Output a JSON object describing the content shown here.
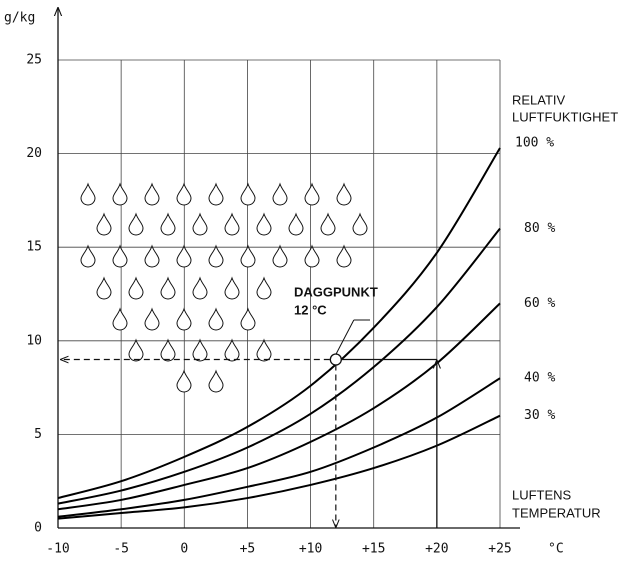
{
  "chart_data": {
    "type": "line",
    "y_label": "g/kg",
    "x_label": "°C",
    "legend_title": [
      "RELATIV",
      "LUFTFUKTIGHET"
    ],
    "x_title": [
      "LUFTENS",
      "TEMPERATUR"
    ],
    "x": [
      -10,
      -5,
      0,
      5,
      10,
      15,
      20,
      25
    ],
    "series": [
      {
        "name": "100 %",
        "color": "#000000",
        "values": [
          1.6,
          2.5,
          3.8,
          5.4,
          7.6,
          10.7,
          14.7,
          20.3
        ]
      },
      {
        "name": "80 %",
        "color": "#000000",
        "values": [
          1.3,
          2.0,
          3.0,
          4.3,
          6.1,
          8.6,
          11.8,
          16.0
        ]
      },
      {
        "name": "60 %",
        "color": "#000000",
        "values": [
          1.0,
          1.5,
          2.3,
          3.2,
          4.6,
          6.4,
          8.8,
          12.0
        ]
      },
      {
        "name": "40 %",
        "color": "#000000",
        "values": [
          0.6,
          1.0,
          1.5,
          2.2,
          3.0,
          4.3,
          5.9,
          8.0
        ]
      },
      {
        "name": "30 %",
        "color": "#000000",
        "values": [
          0.5,
          0.8,
          1.1,
          1.6,
          2.3,
          3.2,
          4.4,
          6.0
        ]
      }
    ],
    "dew_point": {
      "title": "DAGGPUNKT",
      "label": "12 °C",
      "x": 12,
      "y": 9,
      "air_x": 20
    },
    "xlim": [
      -10,
      25
    ],
    "ylim": [
      0,
      25
    ],
    "xticks": [
      -10,
      -5,
      0,
      {
        "value": 5,
        "label": "+5"
      },
      {
        "value": 10,
        "label": "+10"
      },
      {
        "value": 15,
        "label": "+15"
      },
      {
        "value": 20,
        "label": "+20"
      },
      {
        "value": 25,
        "label": "+25"
      }
    ],
    "yticks": [
      0,
      5,
      10,
      15,
      20,
      25
    ],
    "grid": true
  }
}
